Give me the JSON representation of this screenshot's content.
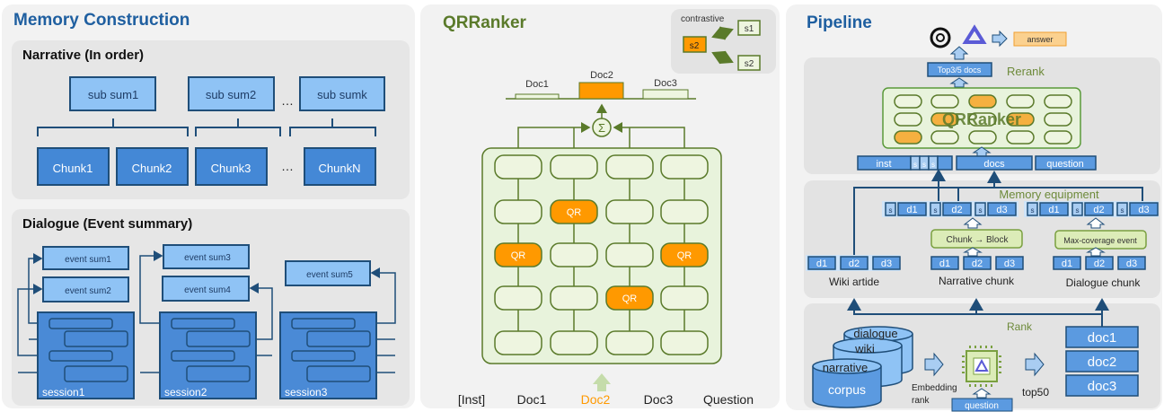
{
  "colors": {
    "blue_title": "#1f5fa0",
    "olive": "#5a7a2a",
    "light_blue": "#8fc3f5",
    "mid_blue": "#4488d6",
    "dark_blue": "#1f4e79",
    "orange": "#ff9900",
    "light_green": "#e8f3dc"
  },
  "memory": {
    "title": "Memory Construction",
    "narrative": {
      "title": "Narrative (In order)",
      "sums": [
        "sub sum1",
        "sub sum2",
        "sub sumk"
      ],
      "chunks": [
        "Chunk1",
        "Chunk2",
        "Chunk3",
        "ChunkN"
      ],
      "ellipsis": "…"
    },
    "dialogue": {
      "title": "Dialogue (Event summary)",
      "events": [
        "event sum1",
        "event sum2",
        "event sum3",
        "event sum4",
        "event sum5"
      ],
      "sessions": [
        "session1",
        "session2",
        "session3"
      ]
    }
  },
  "qrranker": {
    "title": "QRRanker",
    "contrastive": {
      "label": "contrastive",
      "items": [
        "s2",
        "s1",
        "s2"
      ]
    },
    "docs": [
      "Doc1",
      "Doc2",
      "Doc3"
    ],
    "sum_symbol": "Σ",
    "cell_label": "QR",
    "inputs": [
      "[Inst]",
      "Doc1",
      "Doc2",
      "Doc3",
      "Question"
    ]
  },
  "pipeline": {
    "title": "Pipeline",
    "answer": "answer",
    "rerank": {
      "label": "Rerank",
      "top": "Top3/5 docs",
      "model": "QRRanker",
      "inputs": [
        "inst",
        "s",
        "s",
        "s",
        "docs",
        "question"
      ]
    },
    "memory": {
      "label": "Memory equipment",
      "s": "s",
      "d": [
        "d1",
        "d2",
        "d3"
      ],
      "chunk_block": "Chunk → Block",
      "max_cov": "Max-coverage event",
      "sources": [
        "Wiki artide",
        "Narrative chunk",
        "Dialogue chunk"
      ]
    },
    "rank": {
      "label": "Rank",
      "corpora": [
        "dialogue",
        "wiki",
        "narrative"
      ],
      "corpus": "corpus",
      "embedding": "Embedding",
      "rank_word": "rank",
      "question": "question",
      "top50": "top50",
      "docs": [
        "doc1",
        "doc2",
        "doc3"
      ]
    }
  }
}
